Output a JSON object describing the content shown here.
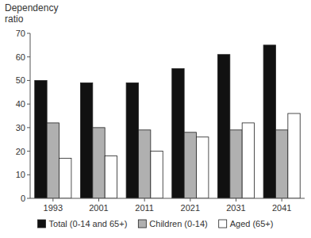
{
  "chart_data": {
    "type": "bar",
    "y_label": "Dependency\nratio",
    "categories": [
      "1993",
      "2001",
      "2011",
      "2021",
      "2031",
      "2041"
    ],
    "series": [
      {
        "name": "Total (0-14 and 65+)",
        "color": "#111111",
        "values": [
          50,
          49,
          49,
          55,
          61,
          65
        ]
      },
      {
        "name": "Children (0-14)",
        "color": "#b0b0b0",
        "values": [
          32,
          30,
          29,
          28,
          29,
          29
        ]
      },
      {
        "name": "Aged (65+)",
        "color": "#ffffff",
        "values": [
          17,
          18,
          20,
          26,
          32,
          36
        ]
      }
    ],
    "ylim": [
      0,
      70
    ],
    "yticks": [
      0,
      10,
      20,
      30,
      40,
      50,
      60,
      70
    ],
    "grid": false,
    "legend": "bottom"
  }
}
